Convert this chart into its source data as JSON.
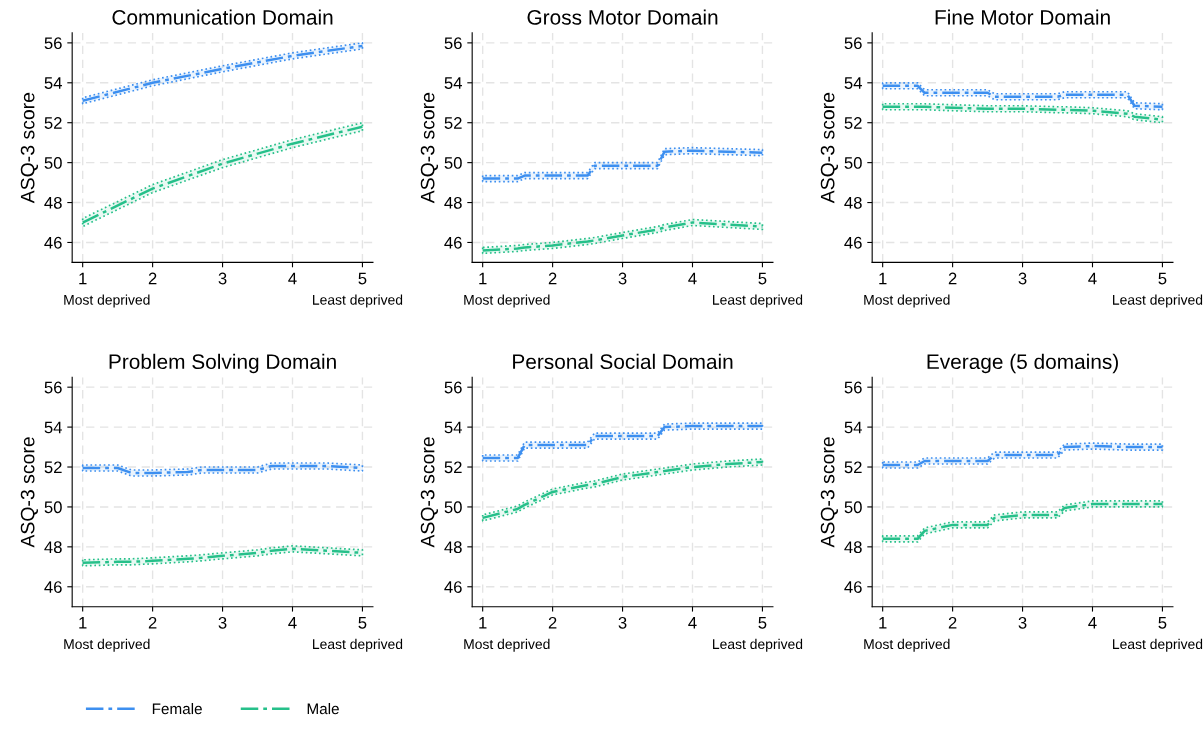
{
  "chart_data": [
    {
      "type": "line",
      "title": "Communication Domain",
      "ylabel": "ASQ-3 score",
      "x": [
        1,
        2,
        3,
        4,
        5
      ],
      "xlim": [
        0.85,
        5.15
      ],
      "ylim": [
        45,
        56.5
      ],
      "xticks": [
        1,
        2,
        3,
        4,
        5
      ],
      "yticks": [
        46,
        48,
        50,
        52,
        54,
        56
      ],
      "grid": true,
      "line_style": "dashed",
      "legend": "bottom",
      "annotations": [
        "Most deprived",
        "Least deprived"
      ],
      "series": [
        {
          "name": "Female",
          "color": "#3d8ff0",
          "values": [
            53.1,
            54.0,
            54.7,
            55.35,
            55.85
          ],
          "lower": [
            52.95,
            53.85,
            54.55,
            55.2,
            55.7
          ],
          "upper": [
            53.25,
            54.15,
            54.85,
            55.5,
            56.0
          ]
        },
        {
          "name": "Male",
          "color": "#26c08a",
          "values": [
            47.0,
            48.7,
            49.95,
            50.95,
            51.8
          ],
          "lower": [
            46.8,
            48.5,
            49.75,
            50.75,
            51.6
          ],
          "upper": [
            47.2,
            48.9,
            50.15,
            51.15,
            52.0
          ]
        }
      ]
    },
    {
      "type": "line",
      "title": "Gross Motor Domain",
      "ylabel": "ASQ-3 score",
      "x": [
        1,
        1.5,
        1.6,
        2,
        2.5,
        2.6,
        3,
        3.5,
        3.6,
        4,
        4.5,
        5
      ],
      "xlim": [
        0.85,
        5.15
      ],
      "ylim": [
        45,
        56.5
      ],
      "xticks": [
        1,
        2,
        3,
        4,
        5
      ],
      "yticks": [
        46,
        48,
        50,
        52,
        54,
        56
      ],
      "grid": true,
      "line_style": "dashed",
      "annotations": [
        "Most deprived",
        "Least deprived"
      ],
      "series": [
        {
          "color": "#3d8ff0",
          "values": [
            49.2,
            49.2,
            49.35,
            49.35,
            49.35,
            49.85,
            49.85,
            49.85,
            50.55,
            50.6,
            50.55,
            50.5
          ],
          "lower": [
            49.05,
            49.05,
            49.2,
            49.2,
            49.2,
            49.7,
            49.7,
            49.7,
            50.4,
            50.45,
            50.4,
            50.35
          ],
          "upper": [
            49.35,
            49.35,
            49.5,
            49.5,
            49.5,
            50.0,
            50.0,
            50.0,
            50.7,
            50.75,
            50.7,
            50.65
          ]
        },
        {
          "color": "#26c08a",
          "values": [
            45.6,
            45.7,
            45.75,
            45.85,
            46.05,
            46.1,
            46.35,
            46.65,
            46.75,
            47.0,
            46.9,
            46.8
          ],
          "lower": [
            45.45,
            45.55,
            45.6,
            45.7,
            45.9,
            45.95,
            46.2,
            46.5,
            46.6,
            46.85,
            46.75,
            46.65
          ],
          "upper": [
            45.75,
            45.85,
            45.9,
            46.0,
            46.2,
            46.25,
            46.5,
            46.8,
            46.9,
            47.15,
            47.05,
            46.95
          ]
        }
      ]
    },
    {
      "type": "line",
      "title": "Fine Motor Domain",
      "ylabel": "ASQ-3 score",
      "x": [
        1,
        1.5,
        1.6,
        2,
        2.5,
        2.6,
        3,
        3.5,
        3.6,
        4,
        4.5,
        4.6,
        5
      ],
      "xlim": [
        0.85,
        5.15
      ],
      "ylim": [
        45,
        56.5
      ],
      "xticks": [
        1,
        2,
        3,
        4,
        5
      ],
      "yticks": [
        46,
        48,
        50,
        52,
        54,
        56
      ],
      "grid": true,
      "line_style": "dashed",
      "annotations": [
        "Most deprived",
        "Least deprived"
      ],
      "series": [
        {
          "color": "#3d8ff0",
          "values": [
            53.85,
            53.85,
            53.5,
            53.5,
            53.5,
            53.3,
            53.3,
            53.3,
            53.4,
            53.4,
            53.4,
            52.85,
            52.8
          ],
          "lower": [
            53.7,
            53.7,
            53.35,
            53.35,
            53.35,
            53.15,
            53.15,
            53.15,
            53.25,
            53.25,
            53.25,
            52.7,
            52.65
          ],
          "upper": [
            54.0,
            54.0,
            53.65,
            53.65,
            53.65,
            53.45,
            53.45,
            53.45,
            53.55,
            53.55,
            53.55,
            53.0,
            52.95
          ]
        },
        {
          "color": "#26c08a",
          "values": [
            52.8,
            52.8,
            52.8,
            52.75,
            52.7,
            52.7,
            52.7,
            52.65,
            52.65,
            52.6,
            52.45,
            52.3,
            52.15
          ],
          "lower": [
            52.65,
            52.65,
            52.65,
            52.6,
            52.55,
            52.55,
            52.55,
            52.5,
            52.5,
            52.45,
            52.3,
            52.15,
            52.0
          ],
          "upper": [
            52.95,
            52.95,
            52.95,
            52.9,
            52.85,
            52.85,
            52.85,
            52.8,
            52.8,
            52.75,
            52.6,
            52.45,
            52.3
          ]
        }
      ]
    },
    {
      "type": "line",
      "title": "Problem Solving Domain",
      "ylabel": "ASQ-3 score",
      "x": [
        1,
        1.5,
        1.7,
        2,
        2.5,
        2.7,
        3,
        3.5,
        3.7,
        4,
        4.5,
        5
      ],
      "xlim": [
        0.85,
        5.15
      ],
      "ylim": [
        45,
        56.5
      ],
      "xticks": [
        1,
        2,
        3,
        4,
        5
      ],
      "yticks": [
        46,
        48,
        50,
        52,
        54,
        56
      ],
      "grid": true,
      "line_style": "dashed",
      "annotations": [
        "Most deprived",
        "Least deprived"
      ],
      "series": [
        {
          "color": "#3d8ff0",
          "values": [
            51.95,
            51.95,
            51.7,
            51.7,
            51.75,
            51.85,
            51.85,
            51.85,
            52.05,
            52.05,
            52.05,
            51.95
          ],
          "lower": [
            51.8,
            51.8,
            51.55,
            51.55,
            51.6,
            51.7,
            51.7,
            51.7,
            51.9,
            51.9,
            51.9,
            51.8
          ],
          "upper": [
            52.1,
            52.1,
            51.85,
            51.85,
            51.9,
            52.0,
            52.0,
            52.0,
            52.2,
            52.2,
            52.2,
            52.1
          ]
        },
        {
          "color": "#26c08a",
          "values": [
            47.2,
            47.25,
            47.25,
            47.3,
            47.4,
            47.45,
            47.55,
            47.7,
            47.8,
            47.9,
            47.8,
            47.7
          ],
          "lower": [
            47.05,
            47.1,
            47.1,
            47.15,
            47.25,
            47.3,
            47.4,
            47.55,
            47.65,
            47.75,
            47.65,
            47.55
          ],
          "upper": [
            47.35,
            47.4,
            47.4,
            47.45,
            47.55,
            47.6,
            47.7,
            47.85,
            47.95,
            48.05,
            47.95,
            47.85
          ]
        }
      ]
    },
    {
      "type": "line",
      "title": "Personal Social Domain",
      "ylabel": "ASQ-3 score",
      "x": [
        1,
        1.5,
        1.6,
        2,
        2.5,
        2.6,
        3,
        3.5,
        3.6,
        4,
        4.5,
        5
      ],
      "xlim": [
        0.85,
        5.15
      ],
      "ylim": [
        45,
        56.5
      ],
      "xticks": [
        1,
        2,
        3,
        4,
        5
      ],
      "yticks": [
        46,
        48,
        50,
        52,
        54,
        56
      ],
      "grid": true,
      "line_style": "dashed",
      "annotations": [
        "Most deprived",
        "Least deprived"
      ],
      "series": [
        {
          "color": "#3d8ff0",
          "values": [
            52.45,
            52.45,
            53.1,
            53.1,
            53.1,
            53.55,
            53.55,
            53.55,
            54.0,
            54.05,
            54.05,
            54.05
          ],
          "lower": [
            52.3,
            52.3,
            52.95,
            52.95,
            52.95,
            53.4,
            53.4,
            53.4,
            53.85,
            53.9,
            53.9,
            53.9
          ],
          "upper": [
            52.6,
            52.6,
            53.25,
            53.25,
            53.25,
            53.7,
            53.7,
            53.7,
            54.15,
            54.2,
            54.2,
            54.2
          ]
        },
        {
          "color": "#26c08a",
          "values": [
            49.45,
            49.9,
            50.1,
            50.75,
            51.1,
            51.15,
            51.5,
            51.75,
            51.8,
            52.0,
            52.15,
            52.25
          ],
          "lower": [
            49.3,
            49.75,
            49.95,
            50.6,
            50.95,
            51.0,
            51.35,
            51.6,
            51.65,
            51.85,
            52.0,
            52.1
          ],
          "upper": [
            49.6,
            50.05,
            50.25,
            50.9,
            51.25,
            51.3,
            51.65,
            51.9,
            51.95,
            52.15,
            52.3,
            52.4
          ]
        }
      ]
    },
    {
      "type": "line",
      "title": "Everage (5 domains)",
      "ylabel": "ASQ-3 score",
      "x": [
        1,
        1.5,
        1.6,
        2,
        2.5,
        2.6,
        3,
        3.5,
        3.6,
        4,
        4.5,
        5
      ],
      "xlim": [
        0.85,
        5.15
      ],
      "ylim": [
        45,
        56.5
      ],
      "xticks": [
        1,
        2,
        3,
        4,
        5
      ],
      "yticks": [
        46,
        48,
        50,
        52,
        54,
        56
      ],
      "grid": true,
      "line_style": "dashed",
      "annotations": [
        "Most deprived",
        "Least deprived"
      ],
      "series": [
        {
          "color": "#3d8ff0",
          "values": [
            52.1,
            52.1,
            52.3,
            52.3,
            52.3,
            52.6,
            52.6,
            52.6,
            53.0,
            53.05,
            53.0,
            53.0
          ],
          "lower": [
            51.95,
            51.95,
            52.15,
            52.15,
            52.15,
            52.45,
            52.45,
            52.45,
            52.85,
            52.9,
            52.85,
            52.85
          ],
          "upper": [
            52.25,
            52.25,
            52.45,
            52.45,
            52.45,
            52.75,
            52.75,
            52.75,
            53.15,
            53.2,
            53.15,
            53.15
          ]
        },
        {
          "color": "#26c08a",
          "values": [
            48.4,
            48.4,
            48.8,
            49.1,
            49.1,
            49.45,
            49.6,
            49.6,
            49.95,
            50.15,
            50.15,
            50.15
          ],
          "lower": [
            48.25,
            48.25,
            48.65,
            48.95,
            48.95,
            49.3,
            49.45,
            49.45,
            49.8,
            50.0,
            50.0,
            50.0
          ],
          "upper": [
            48.55,
            48.55,
            48.95,
            49.25,
            49.25,
            49.6,
            49.75,
            49.75,
            50.1,
            50.3,
            50.3,
            50.3
          ]
        }
      ]
    }
  ]
}
